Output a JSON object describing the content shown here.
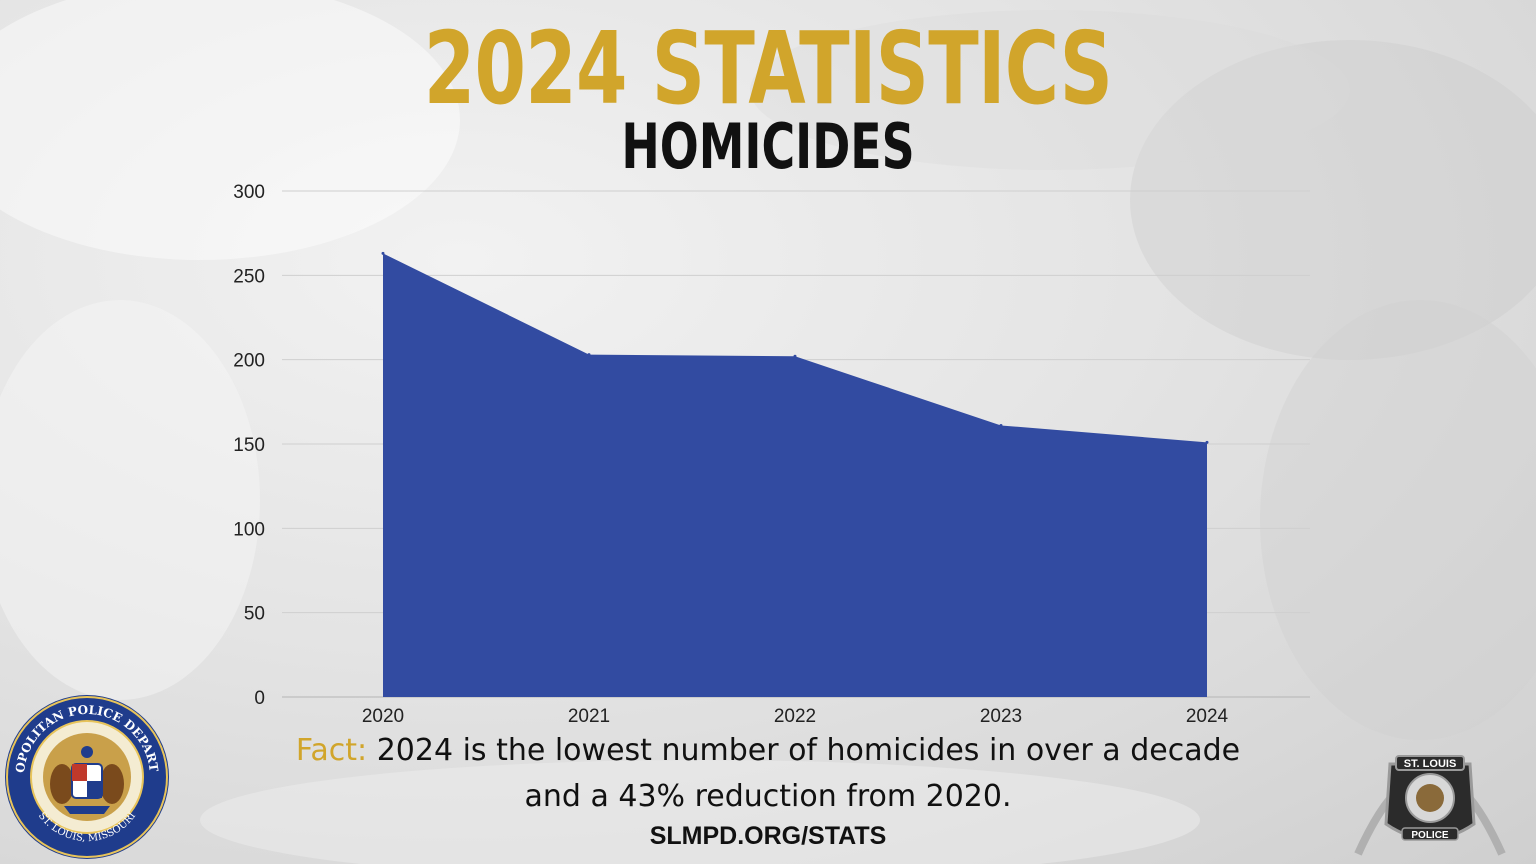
{
  "colors": {
    "title_gold": "#D1A52B",
    "area_fill": "#324BA1",
    "grid": "#cfcfcf",
    "seal_blue": "#1F3C8C"
  },
  "header": {
    "title": "2024 STATISTICS",
    "subtitle": "HOMICIDES"
  },
  "chart_data": {
    "type": "area",
    "categories": [
      "2020",
      "2021",
      "2022",
      "2023",
      "2024"
    ],
    "values": [
      263,
      203,
      202,
      161,
      151
    ],
    "ylim": [
      0,
      300
    ],
    "yticks": [
      0,
      50,
      100,
      150,
      200,
      250,
      300
    ],
    "grid": true,
    "legend": "none"
  },
  "footer": {
    "fact_label": "Fact:",
    "fact_line1": " 2024 is the lowest number of homicides in over a decade",
    "fact_line2": "and a 43% reduction from 2020.",
    "url": "SLMPD.ORG/STATS"
  },
  "logos": {
    "left_seal": {
      "icon": "metropolitan-police-department-seal",
      "top_text": "METROPOLITAN POLICE DEPARTMENT",
      "bottom_text": "ST. LOUIS, MISSOURI"
    },
    "right_badge": {
      "icon": "st-louis-police-badge-with-arch",
      "top_text": "ST. LOUIS",
      "bottom_text": "POLICE"
    }
  }
}
